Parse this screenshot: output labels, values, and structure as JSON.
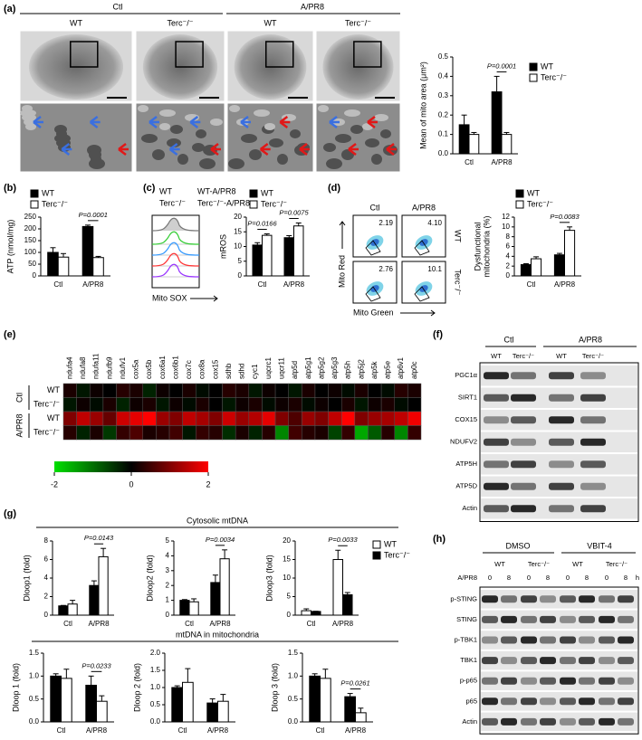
{
  "panels": {
    "labels": [
      "(a)",
      "(b)",
      "(c)",
      "(d)",
      "(e)",
      "(f)",
      "(g)",
      "(h)"
    ],
    "a": {
      "groups": [
        "Ctl",
        "A/PR8"
      ],
      "columns": [
        "WT",
        "Terc⁻/⁻",
        "WT",
        "Terc⁻/⁻"
      ]
    },
    "c": {
      "legend": [
        "WT",
        "WT-A/PR8",
        "Terc⁻/⁻",
        "Terc⁻/⁻-A/PR8"
      ],
      "legend_colors": [
        "#33cc33",
        "#3399ff",
        "#ff3333",
        "#9933ff"
      ],
      "xlabel": "Mito SOX"
    },
    "d": {
      "columns": [
        "Ctl",
        "A/PR8"
      ],
      "rows": [
        "WT",
        "Terc⁻/⁻"
      ],
      "gates": [
        "2.19",
        "4.10",
        "2.76",
        "10.1"
      ],
      "ylabel": "Mito Red",
      "xlabel": "Mito Green"
    },
    "f": {
      "groups": [
        "Ctl",
        "A/PR8"
      ],
      "columns": [
        "WT",
        "Terc⁻/⁻",
        "WT",
        "Terc⁻/⁻"
      ],
      "proteins": [
        "PGC1α",
        "SIRT1",
        "COX15",
        "NDUFV2",
        "ATP5H",
        "ATP5D",
        "Actin"
      ]
    },
    "g": {
      "sections": [
        "Cytosolic mtDNA",
        "mtDNA in mitochondria"
      ]
    },
    "h": {
      "groups": [
        "DMSO",
        "VBIT-4"
      ],
      "columns": [
        "WT",
        "Terc⁻/⁻",
        "WT",
        "Terc⁻/⁻"
      ],
      "treatment": "A/PR8",
      "timepoints": [
        "0",
        "8",
        "0",
        "8",
        "0",
        "8",
        "0",
        "8"
      ],
      "unit": "h",
      "proteins": [
        "p-STING",
        "STING",
        "p-TBK1",
        "TBK1",
        "p-p65",
        "p65",
        "Actin"
      ]
    }
  },
  "chart_data": [
    {
      "type": "bar",
      "ylabel": "Mean of mito area (μm²)",
      "categories": [
        "Ctl",
        "A/PR8"
      ],
      "series": [
        {
          "name": "WT",
          "color": "#000000",
          "values": [
            0.15,
            0.32
          ],
          "errors": [
            0.05,
            0.08
          ]
        },
        {
          "name": "Terc⁻/⁻",
          "color": "#ffffff",
          "values": [
            0.1,
            0.1
          ],
          "errors": [
            0.01,
            0.01
          ]
        }
      ],
      "ylim": [
        0,
        0.5
      ],
      "yticks": [
        {
          "value": 0,
          "label": "0.0"
        },
        {
          "value": 0.1,
          "label": "0.1"
        },
        {
          "value": 0.2,
          "label": "0.2"
        },
        {
          "value": 0.3,
          "label": "0.3"
        },
        {
          "value": 0.4,
          "label": "0.4"
        },
        {
          "value": 0.5,
          "label": "0.5"
        }
      ],
      "annotations": [
        "P=0.0001"
      ],
      "legend": true
    },
    {
      "type": "bar",
      "ylabel": "ATP (nmol/mg)",
      "categories": [
        "Ctl",
        "A/PR8"
      ],
      "series": [
        {
          "name": "WT",
          "color": "#000000",
          "values": [
            100,
            210
          ],
          "errors": [
            20,
            6
          ]
        },
        {
          "name": "Terc⁻/⁻",
          "color": "#ffffff",
          "values": [
            80,
            78
          ],
          "errors": [
            15,
            5
          ]
        }
      ],
      "ylim": [
        0,
        250
      ],
      "yticks": [
        0,
        50,
        100,
        150,
        200,
        250
      ],
      "annotations": [
        "P=0.0001"
      ],
      "legend": true
    },
    {
      "type": "bar",
      "ylabel": "mROS",
      "categories": [
        "Ctl",
        "A/PR8"
      ],
      "series": [
        {
          "name": "WT",
          "color": "#000000",
          "values": [
            10.5,
            13
          ],
          "errors": [
            0.8,
            0.7
          ]
        },
        {
          "name": "Terc⁻/⁻",
          "color": "#ffffff",
          "values": [
            13.8,
            17
          ],
          "errors": [
            0.5,
            1
          ]
        }
      ],
      "ylim": [
        0,
        20
      ],
      "yticks": [
        0,
        5,
        10,
        15,
        20
      ],
      "annotations": [
        "P=0.0166",
        "P=0.0075"
      ],
      "legend": true
    },
    {
      "type": "bar",
      "ylabel": [
        "Dysfunctional",
        "mitochondria (%)"
      ],
      "categories": [
        "Ctl",
        "A/PR8"
      ],
      "series": [
        {
          "name": "WT",
          "color": "#000000",
          "values": [
            2.3,
            4.3
          ],
          "errors": [
            0.2,
            0.3
          ]
        },
        {
          "name": "Terc⁻/⁻",
          "color": "#ffffff",
          "values": [
            3.5,
            9.3
          ],
          "errors": [
            0.4,
            0.7
          ]
        }
      ],
      "ylim": [
        0,
        12
      ],
      "yticks": [
        0,
        2,
        4,
        6,
        8,
        10,
        12
      ],
      "annotations": [
        "P=0.0083"
      ],
      "legend": true
    },
    {
      "type": "bar",
      "ylabel": "Dloop1 (fold)",
      "categories": [
        "Ctl",
        "A/PR8"
      ],
      "series": [
        {
          "color": "#000000",
          "values": [
            1,
            3.2
          ],
          "errors": [
            0.05,
            0.5
          ]
        },
        {
          "color": "#ffffff",
          "values": [
            1.2,
            6.3
          ],
          "errors": [
            0.4,
            0.9
          ]
        }
      ],
      "ylim": [
        0,
        8
      ],
      "yticks": [
        0,
        2,
        4,
        6,
        8
      ],
      "annotations": [
        "P=0.0143"
      ]
    },
    {
      "type": "bar",
      "ylabel": "Dloop2 (fold)",
      "categories": [
        "Ctl",
        "A/PR8"
      ],
      "series": [
        {
          "color": "#000000",
          "values": [
            1,
            2.2
          ],
          "errors": [
            0.05,
            0.5
          ]
        },
        {
          "color": "#ffffff",
          "values": [
            0.9,
            3.8
          ],
          "errors": [
            0.2,
            0.6
          ]
        }
      ],
      "ylim": [
        0,
        5
      ],
      "yticks": [
        0,
        1,
        2,
        3,
        4,
        5
      ],
      "annotations": [
        "P=0.0034"
      ]
    },
    {
      "type": "bar",
      "ylabel": "Dloop3 (fold)",
      "categories": [
        "Ctl",
        "A/PR8"
      ],
      "series": [
        {
          "name": "WT",
          "color": "#ffffff",
          "values": [
            1.2,
            15
          ],
          "errors": [
            0.5,
            2.5
          ]
        },
        {
          "name": "Terc⁻/⁻",
          "color": "#000000",
          "values": [
            1,
            5.5
          ],
          "errors": [
            0.05,
            0.6
          ]
        }
      ],
      "ylim": [
        0,
        20
      ],
      "yticks": [
        0,
        5,
        10,
        15,
        20
      ],
      "annotations": [
        "P=0.0033"
      ],
      "legend": true
    },
    {
      "type": "bar",
      "ylabel": "Dloop 1 (fold)",
      "categories": [
        "Ctl",
        "A/PR8"
      ],
      "series": [
        {
          "color": "#000000",
          "values": [
            1,
            0.8
          ],
          "errors": [
            0.05,
            0.2
          ]
        },
        {
          "color": "#ffffff",
          "values": [
            0.95,
            0.45
          ],
          "errors": [
            0.2,
            0.12
          ]
        }
      ],
      "ylim": [
        0,
        1.5
      ],
      "yticks": [
        {
          "value": 0,
          "label": "0.0"
        },
        {
          "value": 0.5,
          "label": "0.5"
        },
        {
          "value": 1,
          "label": "1.0"
        },
        {
          "value": 1.5,
          "label": "1.5"
        }
      ],
      "annotations": [
        "P=0.0233"
      ]
    },
    {
      "type": "bar",
      "ylabel": "Dloop 2 (fold)",
      "categories": [
        "Ctl",
        "A/PR8"
      ],
      "series": [
        {
          "color": "#000000",
          "values": [
            1,
            0.55
          ],
          "errors": [
            0.05,
            0.12
          ]
        },
        {
          "color": "#ffffff",
          "values": [
            1.15,
            0.6
          ],
          "errors": [
            0.4,
            0.2
          ]
        }
      ],
      "ylim": [
        0,
        2
      ],
      "yticks": [
        {
          "value": 0,
          "label": "0.0"
        },
        {
          "value": 0.5,
          "label": "0.5"
        },
        {
          "value": 1,
          "label": "1.0"
        },
        {
          "value": 1.5,
          "label": "1.5"
        },
        {
          "value": 2,
          "label": "2.0"
        }
      ],
      "annotations": []
    },
    {
      "type": "bar",
      "ylabel": "Dloop 3 (fold)",
      "categories": [
        "Ctl",
        "A/PR8"
      ],
      "series": [
        {
          "color": "#000000",
          "values": [
            1,
            0.55
          ],
          "errors": [
            0.05,
            0.07
          ]
        },
        {
          "color": "#ffffff",
          "values": [
            0.95,
            0.2
          ],
          "errors": [
            0.2,
            0.1
          ]
        }
      ],
      "ylim": [
        0,
        1.5
      ],
      "yticks": [
        {
          "value": 0,
          "label": "0.0"
        },
        {
          "value": 0.5,
          "label": "0.5"
        },
        {
          "value": 1,
          "label": "1.0"
        },
        {
          "value": 1.5,
          "label": "1.5"
        }
      ],
      "annotations": [
        "P=0.0261"
      ]
    },
    {
      "type": "heatmap",
      "x": [
        "ndufa4",
        "ndufa8",
        "ndufa11",
        "ndufb9",
        "ndufv1",
        "cox5a",
        "cox5b",
        "cox6a1",
        "cox6b1",
        "cox7c",
        "cox8a",
        "cox15",
        "sdhb",
        "sdhd",
        "cyc1",
        "uqcrc1",
        "uqcr11",
        "atp5d",
        "atp5g1",
        "atp5g2",
        "atp5g3",
        "atp5h",
        "atp5j2",
        "atp5k",
        "atp5e",
        "atp6v1",
        "atp0c"
      ],
      "groups": [
        "Ctl",
        "A/PR8"
      ],
      "rows": [
        "WT",
        "Terc⁻/⁻",
        "WT",
        "Terc⁻/⁻"
      ],
      "values": [
        [
          0.2,
          -0.2,
          0.1,
          0,
          0.3,
          0.2,
          -0.3,
          0.1,
          0,
          0.2,
          -0.1,
          0,
          0.3,
          0.2,
          -0.2,
          0.1,
          0,
          -0.2,
          0.2,
          0,
          0.1,
          -0.1,
          0.2,
          0,
          -0.1,
          0.3,
          0.2
        ],
        [
          -0.2,
          0.1,
          -0.1,
          0.2,
          -0.3,
          0.1,
          0.2,
          -0.2,
          0.1,
          -0.1,
          0.2,
          0,
          -0.2,
          0.1,
          0.2,
          -0.1,
          0.1,
          0.2,
          -0.1,
          0.1,
          0,
          0.2,
          -0.2,
          0.1,
          0.2,
          -0.1,
          0
        ],
        [
          1.0,
          1.5,
          1.2,
          0.8,
          1.6,
          1.8,
          2.0,
          1.2,
          1.0,
          1.5,
          1.3,
          1.0,
          1.6,
          1.2,
          1.4,
          1.8,
          1.0,
          0.6,
          1.2,
          1.0,
          1.5,
          2.0,
          1.0,
          1.2,
          1.3,
          1.5,
          1.9
        ],
        [
          0.3,
          -0.3,
          0.2,
          -0.5,
          0.4,
          0.6,
          0.2,
          0.3,
          0.5,
          -0.2,
          0.4,
          0.3,
          -0.4,
          0.2,
          -0.3,
          0.3,
          -1.2,
          0.5,
          0.3,
          0.2,
          -0.6,
          0.4,
          -1.5,
          -0.8,
          0.3,
          -1.2,
          0.4
        ]
      ],
      "colorbar": {
        "ticks": [
          -2,
          0,
          2
        ],
        "colors": [
          "#00e000",
          "#000000",
          "#ff0000"
        ]
      }
    }
  ]
}
